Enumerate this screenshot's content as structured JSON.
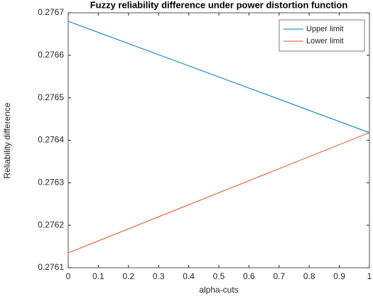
{
  "chart_data": {
    "type": "line",
    "title": "Fuzzy reliability difference under power distortion function",
    "x_label": "alpha-cuts",
    "y_label": "Reliability difference",
    "x": [
      0,
      1
    ],
    "series": [
      {
        "name": "Upper limit",
        "color": "#0072bd",
        "values": [
          0.27668,
          0.276418
        ]
      },
      {
        "name": "Lower limit",
        "color": "#d95319",
        "values": [
          0.276135,
          0.276418
        ]
      }
    ],
    "xlim": [
      0,
      1
    ],
    "xticks": [
      0,
      0.1,
      0.2,
      0.3,
      0.4,
      0.5,
      0.6,
      0.7,
      0.8,
      0.9,
      1
    ],
    "ylim": [
      0.2761,
      0.2767
    ],
    "yticks": [
      0.2761,
      0.2762,
      0.2763,
      0.2764,
      0.2765,
      0.2766,
      0.2767
    ],
    "legend": "top-right"
  }
}
